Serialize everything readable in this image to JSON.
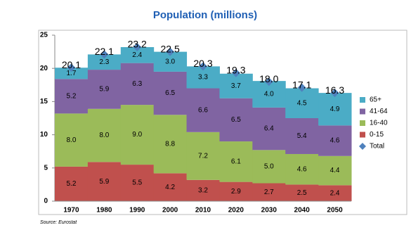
{
  "chart_data": {
    "type": "stacked_area",
    "title": "Population (millions)",
    "source": "Source: Eurostat",
    "categories": [
      "1970",
      "1980",
      "1990",
      "2000",
      "2010",
      "2020",
      "2030",
      "2040",
      "2050"
    ],
    "ylim": [
      0,
      25
    ],
    "yticks": [
      0,
      5,
      10,
      15,
      20,
      25
    ],
    "grid": false,
    "legend": "right",
    "series": [
      {
        "name": "0-15",
        "color": "#c0504d",
        "values": [
          5.2,
          5.9,
          5.5,
          4.2,
          3.2,
          2.9,
          2.7,
          2.5,
          2.4
        ],
        "value_labels": [
          "5.2",
          "5.9",
          "5.5",
          "4.2",
          "3.2",
          "2.9",
          "2.7",
          "2.5",
          "2.4"
        ]
      },
      {
        "name": "16-40",
        "color": "#9bbb59",
        "values": [
          8.0,
          8.0,
          9.0,
          8.8,
          7.2,
          6.1,
          5.0,
          4.6,
          4.4
        ],
        "value_labels": [
          "8.0",
          "8.0",
          "9.0",
          "8.8",
          "7.2",
          "6.1",
          "5.0",
          "4.6",
          "4.4"
        ]
      },
      {
        "name": "41-64",
        "color": "#8064a2",
        "values": [
          5.2,
          5.9,
          6.3,
          6.5,
          6.6,
          6.5,
          6.4,
          5.4,
          4.6
        ],
        "value_labels": [
          "5.2",
          "5.9",
          "6.3",
          "6.5",
          "6.6",
          "6.5",
          "6.4",
          "5.4",
          "4.6"
        ]
      },
      {
        "name": "65+",
        "color": "#4bacc6",
        "values": [
          1.7,
          2.3,
          2.4,
          3.0,
          3.3,
          3.7,
          4.0,
          4.5,
          4.9
        ],
        "value_labels": [
          "1.7",
          "2.3",
          "2.4",
          "3.0",
          "3.3",
          "3.7",
          "4.0",
          "4.5",
          "4.9"
        ]
      }
    ],
    "total": {
      "name": "Total",
      "color": "#4f81bd",
      "values": [
        20.1,
        22.1,
        23.2,
        22.5,
        20.3,
        19.3,
        18.0,
        17.1,
        16.3
      ],
      "value_labels": [
        "20.1",
        "22.1",
        "23.2",
        "22.5",
        "20.3",
        "19.3",
        "18.0",
        "17.1",
        "16.3"
      ]
    }
  }
}
